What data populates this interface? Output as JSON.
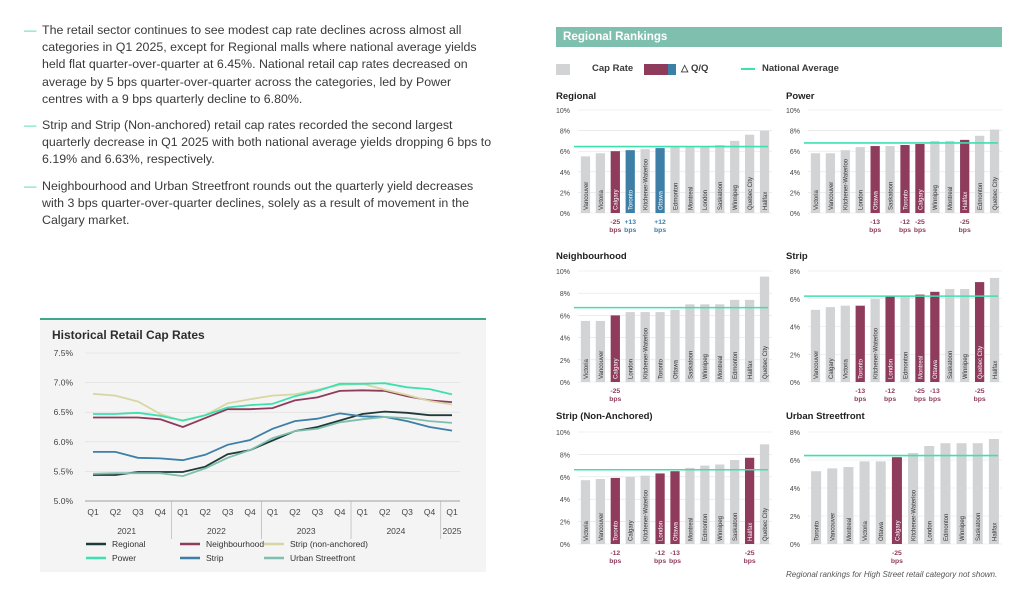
{
  "bullets": [
    "The retail sector continues to see modest cap rate declines across almost all categories in Q1 2025, except for Regional malls where national average yields held flat quarter-over-quarter at 6.45%. National retail cap rates decreased on average by 5 bps quarter-over-quarter across the categories, led by Power centres with a 9 bps quarterly decline to 6.80%.",
    "Strip and Strip (Non-anchored) retail cap rates recorded the second largest quarterly decrease in Q1 2025 with both national average yields dropping 6 bps to 6.19% and 6.63%, respectively.",
    "Neighbourhood and Urban Streetfront rounds out the quarterly yield decreases with 3 bps quarter-over-quarter declines, solely as a result of movement in the Calgary market."
  ],
  "regional_header": "Regional Rankings",
  "legend_top": {
    "cap_rate": "Cap Rate",
    "qq": "△ Q/Q",
    "national": "National Average"
  },
  "colors": {
    "gray": "#d2d3d5",
    "maroon": "#8e3b5c",
    "blue": "#3d7fa6",
    "teal": "#3fe0b0"
  },
  "footnote": "Regional rankings for High Street retail category not shown.",
  "chart_data": [
    {
      "type": "line",
      "title": "Historical Retail Cap Rates",
      "x": [
        "Q1",
        "Q2",
        "Q3",
        "Q4",
        "Q1",
        "Q2",
        "Q3",
        "Q4",
        "Q1",
        "Q2",
        "Q3",
        "Q4",
        "Q1",
        "Q2",
        "Q3",
        "Q4",
        "Q1"
      ],
      "x_groups": [
        {
          "label": "2021",
          "from": 0,
          "to": 3
        },
        {
          "label": "2022",
          "from": 4,
          "to": 7
        },
        {
          "label": "2023",
          "from": 8,
          "to": 11
        },
        {
          "label": "2024",
          "from": 12,
          "to": 15
        },
        {
          "label": "2025",
          "from": 16,
          "to": 16
        }
      ],
      "yticks": [
        "7.5%",
        "7.0%",
        "6.5%",
        "6.0%",
        "5.5%",
        "5.0%"
      ],
      "ylim": [
        5.0,
        7.5
      ],
      "series": [
        {
          "name": "Regional",
          "color": "#1f3a3a",
          "values": [
            5.44,
            5.44,
            5.49,
            5.49,
            5.49,
            5.58,
            5.79,
            5.86,
            6.02,
            6.18,
            6.25,
            6.36,
            6.47,
            6.51,
            6.49,
            6.45,
            6.45
          ]
        },
        {
          "name": "Neighbourhood",
          "color": "#8e3b5c",
          "values": [
            6.41,
            6.41,
            6.41,
            6.38,
            6.25,
            6.4,
            6.55,
            6.55,
            6.57,
            6.7,
            6.75,
            6.86,
            6.87,
            6.86,
            6.77,
            6.7,
            6.67
          ]
        },
        {
          "name": "Strip (non-anchored)",
          "color": "#d9d6a5",
          "values": [
            6.81,
            6.78,
            6.68,
            6.47,
            6.35,
            6.45,
            6.65,
            6.72,
            6.78,
            6.8,
            6.88,
            6.96,
            6.98,
            6.88,
            6.79,
            6.69,
            6.63
          ]
        },
        {
          "name": "Power",
          "color": "#3fe0b0",
          "values": [
            6.47,
            6.47,
            6.49,
            6.44,
            6.36,
            6.45,
            6.58,
            6.62,
            6.64,
            6.77,
            6.86,
            6.98,
            6.98,
            6.99,
            6.92,
            6.89,
            6.8
          ]
        },
        {
          "name": "Strip",
          "color": "#3d7fa6",
          "values": [
            5.83,
            5.83,
            5.73,
            5.72,
            5.69,
            5.78,
            5.95,
            6.03,
            6.22,
            6.35,
            6.39,
            6.48,
            6.43,
            6.42,
            6.35,
            6.25,
            6.19
          ]
        },
        {
          "name": "Urban Streetfront",
          "color": "#7fbfae",
          "values": [
            5.46,
            5.47,
            5.47,
            5.47,
            5.42,
            5.55,
            5.73,
            5.86,
            6.06,
            6.18,
            6.22,
            6.33,
            6.38,
            6.42,
            6.4,
            6.35,
            6.32
          ]
        }
      ]
    },
    {
      "type": "bar",
      "title": "Regional",
      "yticks": [
        "0%",
        "2%",
        "4%",
        "6%",
        "8%",
        "10%"
      ],
      "ylim": [
        0,
        10
      ],
      "national": 6.45,
      "categories": [
        "Vancouver",
        "Victoria",
        "Calgary",
        "Toronto",
        "Kitchener-Waterloo",
        "Ottawa",
        "Edmonton",
        "Montreal",
        "London",
        "Saskatoon",
        "Winnipeg",
        "Quebec City",
        "Halifax"
      ],
      "values": [
        5.5,
        5.8,
        6.0,
        6.1,
        6.2,
        6.3,
        6.4,
        6.5,
        6.5,
        6.6,
        7.0,
        7.6,
        8.0
      ],
      "highlight": [
        "gray",
        "gray",
        "maroon",
        "blue",
        "gray",
        "blue",
        "gray",
        "gray",
        "gray",
        "gray",
        "gray",
        "gray",
        "gray"
      ],
      "changes": [
        {
          "index": 2,
          "line1": "-25",
          "line2": "bps",
          "color": "#8e3b5c"
        },
        {
          "index": 3,
          "line1": "+13",
          "line2": "bps",
          "color": "#3d7fa6"
        },
        {
          "index": 5,
          "line1": "+12",
          "line2": "bps",
          "color": "#3d7fa6"
        }
      ]
    },
    {
      "type": "bar",
      "title": "Power",
      "yticks": [
        "0%",
        "2%",
        "4%",
        "6%",
        "8%",
        "10%"
      ],
      "ylim": [
        0,
        10
      ],
      "national": 6.8,
      "categories": [
        "Victoria",
        "Vancouver",
        "Kitchener-Waterloo",
        "London",
        "Ottawa",
        "Saskatoon",
        "Toronto",
        "Calgary",
        "Winnipeg",
        "Montreal",
        "Halifax",
        "Edmonton",
        "Quebec City"
      ],
      "values": [
        5.8,
        5.8,
        6.1,
        6.4,
        6.5,
        6.5,
        6.6,
        6.7,
        7.0,
        7.0,
        7.1,
        7.5,
        8.1
      ],
      "highlight": [
        "gray",
        "gray",
        "gray",
        "gray",
        "maroon",
        "gray",
        "maroon",
        "maroon",
        "gray",
        "gray",
        "maroon",
        "gray",
        "gray"
      ],
      "changes": [
        {
          "index": 4,
          "line1": "-13",
          "line2": "bps",
          "color": "#8e3b5c"
        },
        {
          "index": 6,
          "line1": "-12",
          "line2": "bps",
          "color": "#8e3b5c"
        },
        {
          "index": 7,
          "line1": "-25",
          "line2": "bps",
          "color": "#8e3b5c"
        },
        {
          "index": 10,
          "line1": "-25",
          "line2": "bps",
          "color": "#8e3b5c"
        }
      ]
    },
    {
      "type": "bar",
      "title": "Neighbourhood",
      "yticks": [
        "0%",
        "2%",
        "4%",
        "6%",
        "8%",
        "10%"
      ],
      "ylim": [
        0,
        10
      ],
      "national": 6.7,
      "categories": [
        "Victoria",
        "Vancouver",
        "Calgary",
        "London",
        "Kitchener-Waterloo",
        "Toronto",
        "Ottawa",
        "Saskatoon",
        "Winnipeg",
        "Montreal",
        "Edmonton",
        "Halifax",
        "Quebec City"
      ],
      "values": [
        5.5,
        5.5,
        6.0,
        6.3,
        6.3,
        6.3,
        6.5,
        7.0,
        7.0,
        7.0,
        7.4,
        7.4,
        9.5
      ],
      "highlight": [
        "gray",
        "gray",
        "maroon",
        "gray",
        "gray",
        "gray",
        "gray",
        "gray",
        "gray",
        "gray",
        "gray",
        "gray",
        "gray"
      ],
      "changes": [
        {
          "index": 2,
          "line1": "-25",
          "line2": "bps",
          "color": "#8e3b5c"
        }
      ]
    },
    {
      "type": "bar",
      "title": "Strip",
      "yticks": [
        "0%",
        "2%",
        "4%",
        "6%",
        "8%"
      ],
      "ylim": [
        0,
        8
      ],
      "national": 6.19,
      "categories": [
        "Vancouver",
        "Calgary",
        "Victoria",
        "Toronto",
        "Kitchener-Waterloo",
        "London",
        "Edmonton",
        "Montreal",
        "Ottawa",
        "Saskatoon",
        "Winnipeg",
        "Quebec City",
        "Halifax"
      ],
      "values": [
        5.2,
        5.4,
        5.5,
        5.5,
        6.0,
        6.2,
        6.2,
        6.3,
        6.5,
        6.7,
        6.7,
        7.2,
        7.5
      ],
      "highlight": [
        "gray",
        "gray",
        "gray",
        "maroon",
        "gray",
        "maroon",
        "gray",
        "maroon",
        "maroon",
        "gray",
        "gray",
        "maroon",
        "gray"
      ],
      "changes": [
        {
          "index": 3,
          "line1": "-13",
          "line2": "bps",
          "color": "#8e3b5c"
        },
        {
          "index": 5,
          "line1": "-12",
          "line2": "bps",
          "color": "#8e3b5c"
        },
        {
          "index": 7,
          "line1": "-25",
          "line2": "bps",
          "color": "#8e3b5c"
        },
        {
          "index": 8,
          "line1": "-13",
          "line2": "bps",
          "color": "#8e3b5c"
        },
        {
          "index": 11,
          "line1": "-25",
          "line2": "bps",
          "color": "#8e3b5c"
        }
      ]
    },
    {
      "type": "bar",
      "title": "Strip (Non-Anchored)",
      "yticks": [
        "0%",
        "2%",
        "4%",
        "6%",
        "8%",
        "10%"
      ],
      "ylim": [
        0,
        10
      ],
      "national": 6.63,
      "categories": [
        "Victoria",
        "Vancouver",
        "Toronto",
        "Calgary",
        "Kitchener-Waterloo",
        "London",
        "Ottawa",
        "Montreal",
        "Edmonton",
        "Winnipeg",
        "Saskatoon",
        "Halifax",
        "Quebec City"
      ],
      "values": [
        5.7,
        5.8,
        5.9,
        6.0,
        6.1,
        6.3,
        6.5,
        6.8,
        7.0,
        7.1,
        7.5,
        7.7,
        8.9
      ],
      "highlight": [
        "gray",
        "gray",
        "maroon",
        "gray",
        "gray",
        "maroon",
        "maroon",
        "gray",
        "gray",
        "gray",
        "gray",
        "maroon",
        "gray"
      ],
      "changes": [
        {
          "index": 2,
          "line1": "-12",
          "line2": "bps",
          "color": "#8e3b5c"
        },
        {
          "index": 5,
          "line1": "-12",
          "line2": "bps",
          "color": "#8e3b5c"
        },
        {
          "index": 6,
          "line1": "-13",
          "line2": "bps",
          "color": "#8e3b5c"
        },
        {
          "index": 11,
          "line1": "-25",
          "line2": "bps",
          "color": "#8e3b5c"
        }
      ]
    },
    {
      "type": "bar",
      "title": "Urban Streetfront",
      "yticks": [
        "0%",
        "2%",
        "4%",
        "6%",
        "8%"
      ],
      "ylim": [
        0,
        8
      ],
      "national": 6.32,
      "categories": [
        "Toronto",
        "Vancouver",
        "Montreal",
        "Victoria",
        "Ottawa",
        "Calgary",
        "Kitchener-Waterloo",
        "London",
        "Edmonton",
        "Winnipeg",
        "Saskatoon",
        "Halifax"
      ],
      "values": [
        5.2,
        5.4,
        5.5,
        5.9,
        5.9,
        6.2,
        6.5,
        7.0,
        7.2,
        7.2,
        7.2,
        7.5
      ],
      "highlight": [
        "gray",
        "gray",
        "gray",
        "gray",
        "gray",
        "maroon",
        "gray",
        "gray",
        "gray",
        "gray",
        "gray",
        "gray"
      ],
      "changes": [
        {
          "index": 5,
          "line1": "-25",
          "line2": "bps",
          "color": "#8e3b5c"
        }
      ]
    }
  ]
}
